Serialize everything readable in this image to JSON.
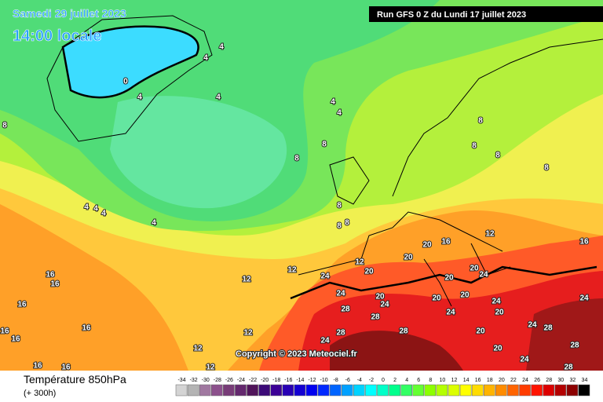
{
  "header": {
    "date": "Samedi 29 juillet 2023",
    "time": "14:00 locale",
    "run": "Run GFS 0 Z du Lundi 17 juillet 2023"
  },
  "copyright": "Copyright © 2023 Meteociel.fr",
  "footer": {
    "title": "Température 850hPa",
    "lead": "(+ 300h)"
  },
  "legend": {
    "values": [
      -34,
      -32,
      -30,
      -28,
      -26,
      -24,
      -22,
      -20,
      -18,
      -16,
      -14,
      -12,
      -10,
      -8,
      -6,
      -4,
      -2,
      0,
      2,
      4,
      6,
      8,
      10,
      12,
      14,
      16,
      18,
      20,
      22,
      24,
      26,
      28,
      30,
      32,
      34
    ],
    "colors": [
      "#d4d4d4",
      "#b4b4b4",
      "#a078a0",
      "#8c508c",
      "#783c78",
      "#64286e",
      "#50145a",
      "#3c0a78",
      "#3c0096",
      "#2800b4",
      "#1400d2",
      "#0000f0",
      "#0028ff",
      "#0064ff",
      "#00a0ff",
      "#00d2ff",
      "#00ffff",
      "#00ffc8",
      "#00ff8c",
      "#32ff64",
      "#64ff32",
      "#8cff00",
      "#b4ff00",
      "#dcff00",
      "#ffff00",
      "#ffdc00",
      "#ffb400",
      "#ff8c00",
      "#ff6400",
      "#ff3c00",
      "#ff1400",
      "#dc0000",
      "#b40000",
      "#8c0000",
      "#000000"
    ]
  },
  "contour_labels": [
    0,
    4,
    4,
    4,
    4,
    4,
    4,
    8,
    8,
    8,
    4,
    4,
    4,
    4,
    8,
    8,
    8,
    8,
    8,
    8,
    8,
    12,
    12,
    12,
    12,
    16,
    16,
    16,
    16,
    16,
    16,
    16,
    16,
    16,
    16,
    12,
    12,
    12,
    20,
    20,
    20,
    24,
    24,
    20,
    28,
    28,
    24,
    20,
    24,
    20,
    20,
    24,
    24,
    20,
    20,
    24,
    28,
    20,
    28,
    28,
    24,
    28,
    28,
    24,
    24,
    20
  ]
}
